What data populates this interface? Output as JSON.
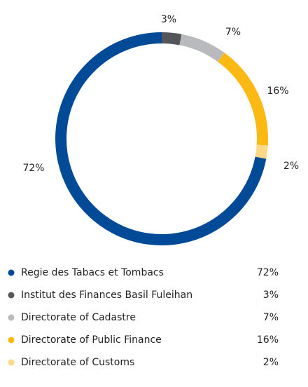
{
  "chart_data": {
    "type": "donut",
    "categories": [
      "Regie des Tabacs et Tombacs",
      "Institut des Finances Basil Fuleihan",
      "Directorate of Cadastre",
      "Directorate of Public Finance",
      "Directorate of Customs"
    ],
    "values": [
      72,
      3,
      7,
      16,
      2
    ],
    "value_labels": [
      "72%",
      "3%",
      "7%",
      "16%",
      "2%"
    ],
    "colors": [
      "#004a98",
      "#55565a",
      "#b9babd",
      "#fcb813",
      "#fdd985"
    ],
    "legend": "bottom"
  }
}
